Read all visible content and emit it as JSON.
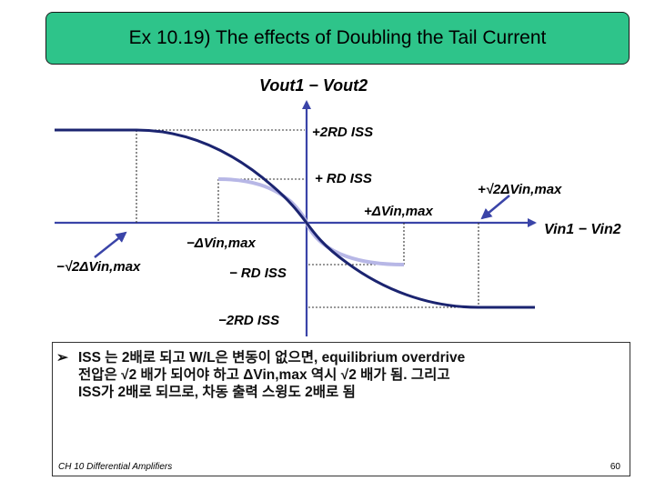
{
  "title": "Ex 10.19) The effects of Doubling the Tail Current",
  "labels": {
    "y_axis_main": "Vout1 − Vout2",
    "pos_2rd_iss": "+2RD ISS",
    "pos_rd_iss": "+ RD ISS",
    "pos_sqrt2_dv": "+√2ΔVin,max",
    "pos_dv": "+ΔVin,max",
    "x_axis": "Vin1 − Vin2",
    "neg_dv": "−ΔVin,max",
    "neg_sqrt2_dv": "−√2ΔVin,max",
    "neg_rd_iss": "− RD ISS",
    "neg_2rd_iss": "−2RD ISS"
  },
  "note": {
    "line1": "ISS 는 2배로 되고 W/L은 변동이 없으면, equilibrium overdrive",
    "line2": "전압은 √2 배가 되어야 하고 ΔVin,max 역시 √2 배가 됨. 그리고",
    "line3": "ISS가 2배로 되므로, 차동 출력 스윙도 2배로 됨"
  },
  "footer": {
    "course": "CH 10 Differential Amplifiers",
    "page": "60"
  },
  "colors": {
    "title_bg": "#2ec48a",
    "curve_doubled": "#1b2470",
    "curve_original": "#b7b7e6",
    "axis": "#3a44a8"
  }
}
